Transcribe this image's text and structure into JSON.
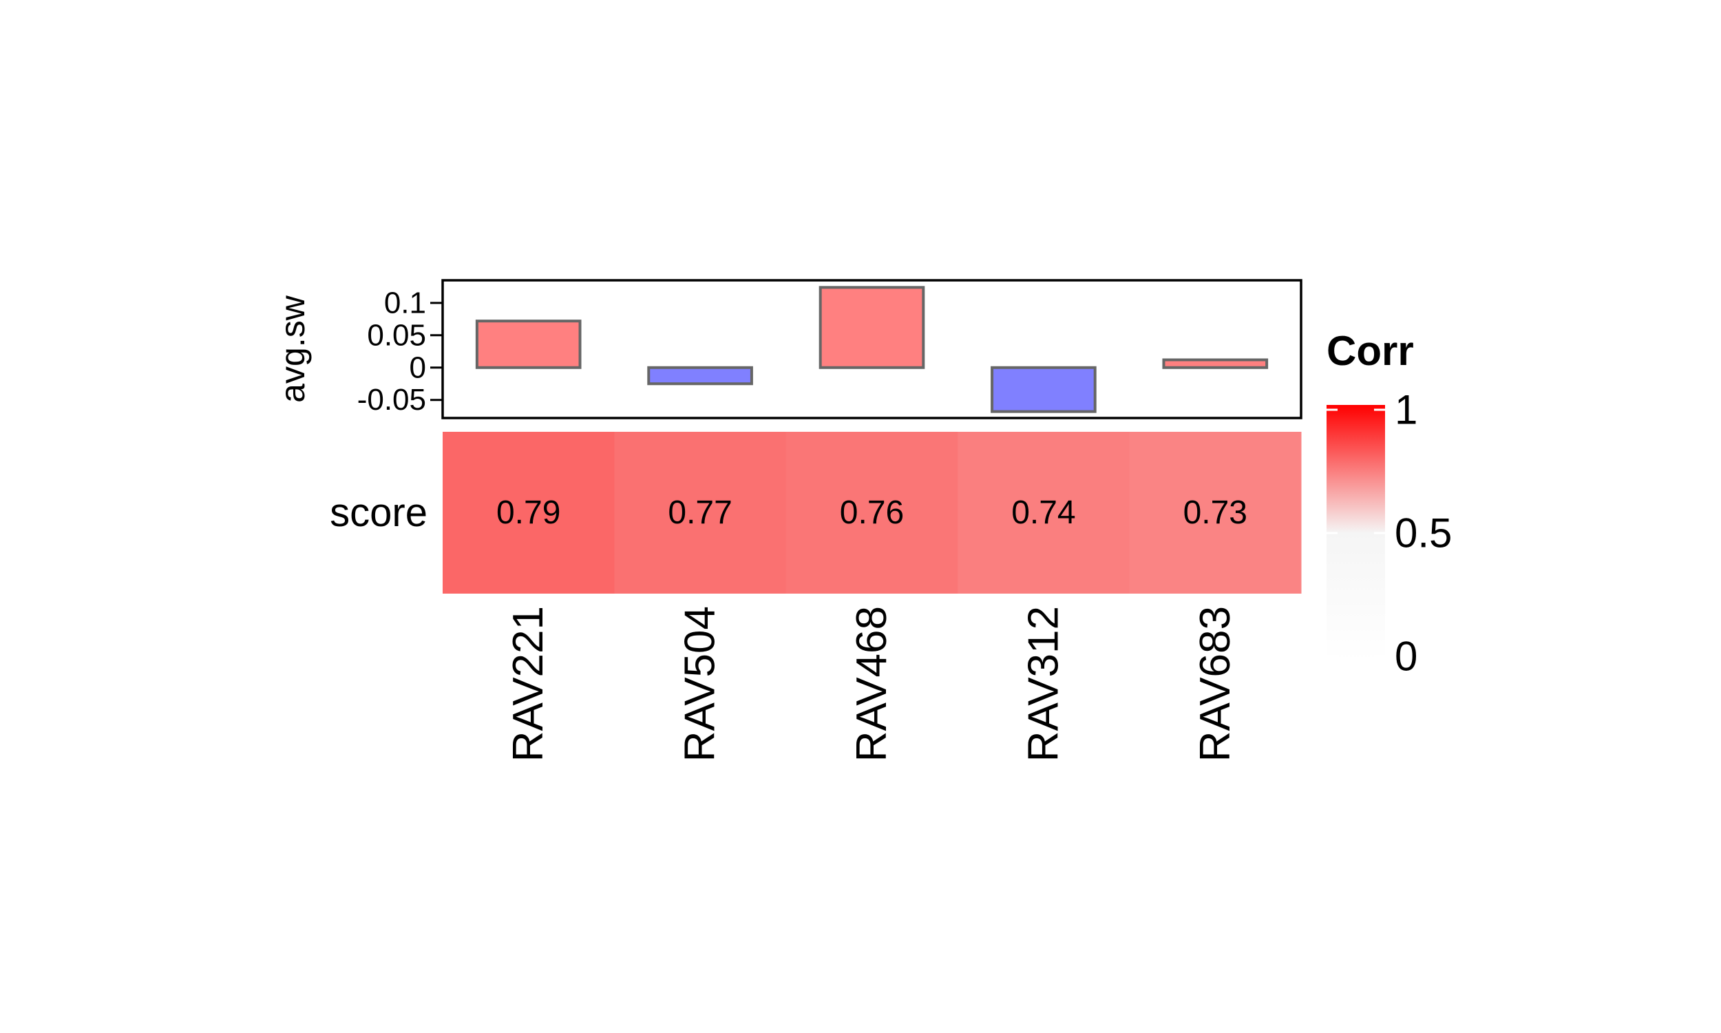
{
  "chart_data": {
    "type": "heatmap",
    "categories": [
      "RAV221",
      "RAV504",
      "RAV468",
      "RAV312",
      "RAV683"
    ],
    "annotation": {
      "type": "bar",
      "ylabel": "avg.sw",
      "values": [
        0.072,
        -0.025,
        0.124,
        -0.068,
        0.012
      ],
      "yticks": [
        0.1,
        0.05,
        0,
        -0.05
      ],
      "ytick_labels": [
        "0.1",
        "0.05",
        "0",
        "-0.05"
      ],
      "ylim": [
        -0.078,
        0.135
      ],
      "positive_color": "#ff8080",
      "negative_color": "#8080ff",
      "border_color": "#666666"
    },
    "heatmap": {
      "row_label": "score",
      "values": [
        0.79,
        0.77,
        0.76,
        0.74,
        0.73
      ],
      "cell_labels": [
        "0.79",
        "0.77",
        "0.76",
        "0.74",
        "0.73"
      ]
    },
    "legend": {
      "title": "Corr",
      "ticks": [
        1,
        0.5,
        0
      ],
      "tick_labels": [
        "1",
        "0.5",
        "0"
      ],
      "color_low": "#ffffff",
      "color_mid": "#f5f5f5",
      "color_high": "#ff0000",
      "placement": "right"
    }
  }
}
